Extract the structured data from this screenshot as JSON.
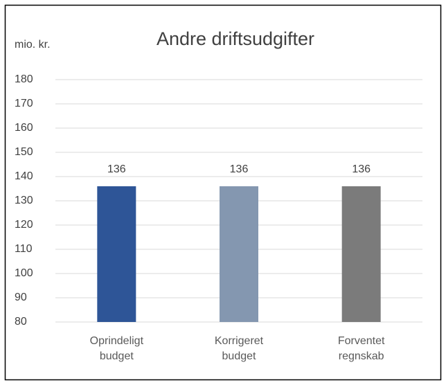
{
  "chart_data": {
    "type": "bar",
    "title": "Andre driftsudgifter",
    "y_label": "mio. kr.",
    "categories": [
      "Oprindeligt budget",
      "Korrigeret budget",
      "Forventet regnskab"
    ],
    "values": [
      136,
      136,
      136
    ],
    "colors": [
      "#2e5597",
      "#8497b0",
      "#7b7b7b"
    ],
    "ylim": [
      80,
      180
    ],
    "yticks": [
      80,
      90,
      100,
      110,
      120,
      130,
      140,
      150,
      160,
      170,
      180
    ],
    "grid": true
  }
}
